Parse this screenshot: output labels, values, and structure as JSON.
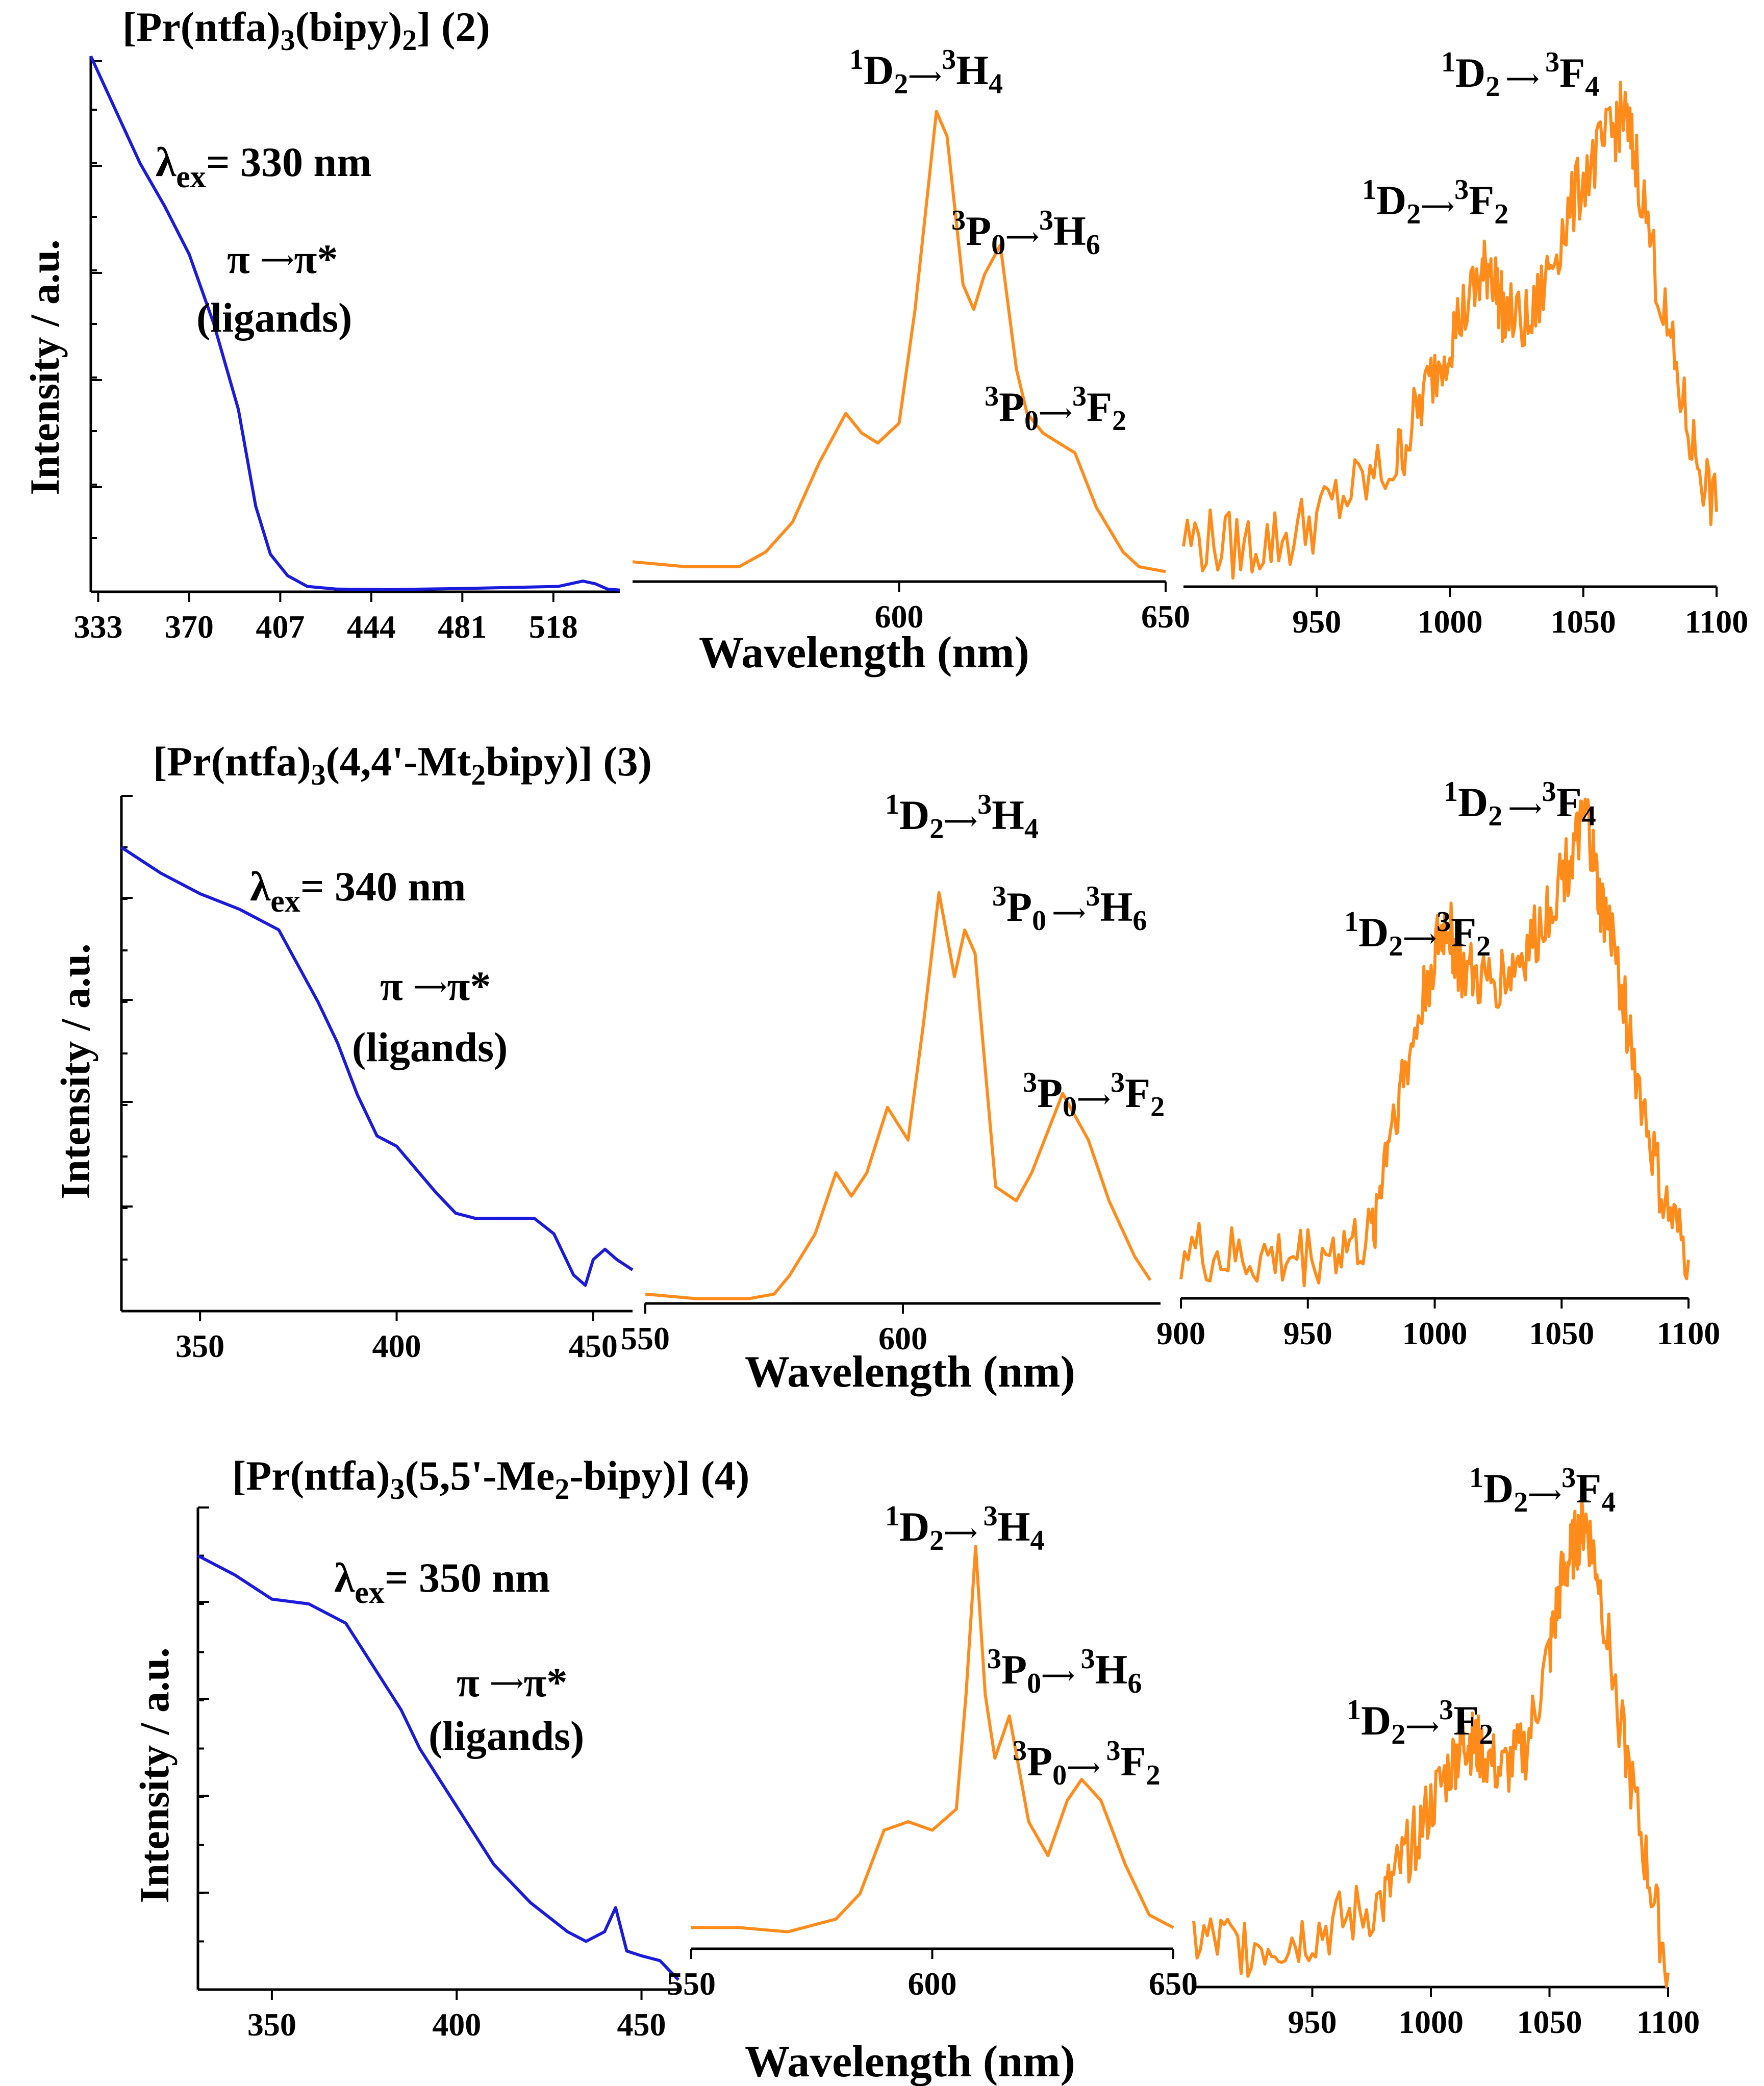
{
  "figure": {
    "xlabel": "Wavelength (nm)",
    "ylabel": "Intensity / a.u.",
    "panels": [
      {
        "compound": "[Pr(ntfa)3(bipy)2] (2)",
        "excitation_label": "λex= 330 nm",
        "pi_label": "π → π*",
        "ligands_label": "(ligands)"
      },
      {
        "compound": "[Pr(ntfa)3(4,4'-Mt2bipy)] (3)",
        "excitation_label": "λex= 340 nm",
        "pi_label": "π → π*",
        "ligands_label": "(ligands)"
      },
      {
        "compound": "[Pr(ntfa)3(5,5'-Me2-bipy)] (4)",
        "excitation_label": "λex= 350 nm",
        "pi_label": "π → π*",
        "ligands_label": "(ligands)"
      }
    ],
    "colors": {
      "excitation": "#1a1adc",
      "emission": "#ff8c1a"
    }
  },
  "chart_data": [
    {
      "type": "line",
      "title": "[Pr(ntfa)3(bipy)2] (2) — excitation",
      "xlabel": "",
      "ylabel": "Intensity / a.u.",
      "xlim": [
        330,
        545
      ],
      "ylim": [
        0,
        1
      ],
      "tick_labels": [
        "333",
        "370",
        "407",
        "444",
        "481",
        "518"
      ],
      "ticks": [
        333,
        370,
        407,
        444,
        481,
        518
      ],
      "series": [
        {
          "name": "excitation λex = 330 nm",
          "x": [
            330,
            340,
            350,
            360,
            370,
            380,
            390,
            397,
            403,
            410,
            418,
            430,
            450,
            480,
            500,
            520,
            530,
            535,
            540,
            545
          ],
          "y": [
            1.0,
            0.9,
            0.8,
            0.72,
            0.63,
            0.5,
            0.34,
            0.16,
            0.07,
            0.03,
            0.01,
            0.005,
            0.004,
            0.006,
            0.008,
            0.01,
            0.02,
            0.015,
            0.005,
            0.003
          ]
        }
      ]
    },
    {
      "type": "line",
      "title": "[Pr(ntfa)3(bipy)2] (2) — emission 550–650 nm",
      "xlabel": "Wavelength (nm)",
      "xlim": [
        550,
        650
      ],
      "ylim": [
        0,
        1
      ],
      "tick_labels": [
        "600",
        "650"
      ],
      "ticks": [
        600,
        650
      ],
      "annotations": [
        "1D2→3H4",
        "3P0→3H6",
        "3P0→3F2"
      ],
      "series": [
        {
          "name": "emission",
          "x": [
            550,
            560,
            570,
            575,
            580,
            585,
            590,
            593,
            596,
            600,
            603,
            607,
            609,
            612,
            614,
            616,
            619,
            622,
            624,
            627,
            630,
            633,
            637,
            642,
            645,
            650
          ],
          "y": [
            0.04,
            0.03,
            0.03,
            0.06,
            0.12,
            0.24,
            0.34,
            0.3,
            0.28,
            0.32,
            0.55,
            0.95,
            0.9,
            0.6,
            0.55,
            0.62,
            0.68,
            0.43,
            0.34,
            0.3,
            0.28,
            0.26,
            0.15,
            0.06,
            0.03,
            0.02
          ]
        }
      ]
    },
    {
      "type": "line",
      "title": "[Pr(ntfa)3(bipy)2] (2) — emission 900–1100 nm",
      "xlabel": "Wavelength (nm)",
      "xlim": [
        900,
        1100
      ],
      "ylim": [
        0,
        1
      ],
      "tick_labels": [
        "950",
        "1000",
        "1050",
        "1100"
      ],
      "ticks": [
        950,
        1000,
        1050,
        1100
      ],
      "annotations": [
        "1D2→3F2",
        "1D2→3F4"
      ],
      "series": [
        {
          "name": "emission",
          "x": [
            900,
            920,
            940,
            960,
            980,
            990,
            1000,
            1010,
            1015,
            1020,
            1030,
            1040,
            1050,
            1060,
            1065,
            1070,
            1080,
            1090,
            1100
          ],
          "y": [
            0.1,
            0.08,
            0.1,
            0.18,
            0.25,
            0.38,
            0.5,
            0.6,
            0.65,
            0.55,
            0.52,
            0.68,
            0.82,
            0.9,
            0.95,
            0.85,
            0.55,
            0.3,
            0.15
          ]
        }
      ]
    },
    {
      "type": "line",
      "title": "[Pr(ntfa)3(4,4'-Mt2bipy)] (3) — excitation",
      "xlabel": "",
      "ylabel": "Intensity / a.u.",
      "xlim": [
        330,
        460
      ],
      "ylim": [
        0,
        1
      ],
      "tick_labels": [
        "350",
        "400",
        "450"
      ],
      "ticks": [
        350,
        400,
        450
      ],
      "series": [
        {
          "name": "excitation λex = 340 nm",
          "x": [
            330,
            340,
            350,
            360,
            370,
            380,
            385,
            390,
            395,
            400,
            410,
            415,
            420,
            430,
            435,
            440,
            445,
            448,
            450,
            453,
            456,
            460
          ],
          "y": [
            0.9,
            0.85,
            0.81,
            0.78,
            0.74,
            0.6,
            0.52,
            0.42,
            0.34,
            0.32,
            0.23,
            0.19,
            0.18,
            0.18,
            0.18,
            0.15,
            0.07,
            0.05,
            0.1,
            0.12,
            0.1,
            0.08
          ]
        }
      ]
    },
    {
      "type": "line",
      "title": "[Pr(ntfa)3(4,4'-Mt2bipy)] (3) — emission 550–650 nm",
      "xlabel": "Wavelength (nm)",
      "xlim": [
        550,
        650
      ],
      "ylim": [
        0,
        1
      ],
      "tick_labels": [
        "550",
        "600"
      ],
      "ticks": [
        550,
        600
      ],
      "annotations": [
        "1D2→3H4",
        "3P0→3H6",
        "3P0→3F2"
      ],
      "series": [
        {
          "name": "emission",
          "x": [
            550,
            560,
            570,
            575,
            578,
            583,
            587,
            590,
            593,
            597,
            601,
            604,
            607,
            610,
            612,
            614,
            618,
            622,
            625,
            631,
            636,
            640,
            645,
            648
          ],
          "y": [
            0.02,
            0.01,
            0.01,
            0.02,
            0.06,
            0.15,
            0.28,
            0.23,
            0.28,
            0.42,
            0.35,
            0.6,
            0.88,
            0.7,
            0.8,
            0.75,
            0.25,
            0.22,
            0.28,
            0.45,
            0.35,
            0.22,
            0.1,
            0.05
          ]
        }
      ]
    },
    {
      "type": "line",
      "title": "[Pr(ntfa)3(4,4'-Mt2bipy)] (3) — emission 900–1100 nm",
      "xlabel": "Wavelength (nm)",
      "xlim": [
        900,
        1100
      ],
      "ylim": [
        0,
        1
      ],
      "tick_labels": [
        "900",
        "950",
        "1000",
        "1050",
        "1100"
      ],
      "ticks": [
        900,
        950,
        1000,
        1050,
        1100
      ],
      "annotations": [
        "1D2→3F2",
        "1D2→3F4"
      ],
      "series": [
        {
          "name": "emission",
          "x": [
            900,
            920,
            940,
            960,
            975,
            982,
            990,
            1000,
            1005,
            1010,
            1020,
            1030,
            1040,
            1050,
            1055,
            1060,
            1065,
            1070,
            1080,
            1090,
            1100
          ],
          "y": [
            0.1,
            0.08,
            0.08,
            0.1,
            0.12,
            0.35,
            0.5,
            0.72,
            0.78,
            0.68,
            0.65,
            0.68,
            0.75,
            0.88,
            0.93,
            1.0,
            0.82,
            0.75,
            0.45,
            0.2,
            0.08
          ]
        }
      ]
    },
    {
      "type": "line",
      "title": "[Pr(ntfa)3(5,5'-Me2-bipy)] (4) — excitation",
      "xlabel": "",
      "ylabel": "Intensity / a.u.",
      "xlim": [
        330,
        460
      ],
      "ylim": [
        0,
        1
      ],
      "tick_labels": [
        "350",
        "400",
        "450"
      ],
      "ticks": [
        350,
        400,
        450
      ],
      "series": [
        {
          "name": "excitation λex = 350 nm",
          "x": [
            330,
            340,
            350,
            360,
            370,
            380,
            385,
            390,
            395,
            400,
            410,
            415,
            420,
            430,
            435,
            440,
            443,
            446,
            450,
            455,
            460
          ],
          "y": [
            0.9,
            0.86,
            0.81,
            0.8,
            0.76,
            0.64,
            0.58,
            0.5,
            0.44,
            0.38,
            0.26,
            0.22,
            0.18,
            0.12,
            0.1,
            0.12,
            0.17,
            0.08,
            0.07,
            0.06,
            0.02
          ]
        }
      ]
    },
    {
      "type": "line",
      "title": "[Pr(ntfa)3(5,5'-Me2-bipy)] (4) — emission 550–650 nm",
      "xlabel": "Wavelength (nm)",
      "xlim": [
        550,
        650
      ],
      "ylim": [
        0,
        1
      ],
      "tick_labels": [
        "550",
        "600",
        "650"
      ],
      "ticks": [
        550,
        600,
        650
      ],
      "annotations": [
        "1D2→3H4",
        "3P0→3H6",
        "3P0→3F2"
      ],
      "series": [
        {
          "name": "emission",
          "x": [
            550,
            560,
            570,
            580,
            585,
            590,
            595,
            600,
            605,
            607,
            609,
            611,
            613,
            616,
            620,
            624,
            628,
            631,
            635,
            640,
            645,
            650
          ],
          "y": [
            0.05,
            0.05,
            0.04,
            0.07,
            0.13,
            0.28,
            0.3,
            0.28,
            0.33,
            0.6,
            0.95,
            0.6,
            0.45,
            0.55,
            0.3,
            0.22,
            0.35,
            0.4,
            0.35,
            0.2,
            0.08,
            0.05
          ]
        }
      ]
    },
    {
      "type": "line",
      "title": "[Pr(ntfa)3(5,5'-Me2-bipy)] (4) — emission 900–1100 nm",
      "xlabel": "Wavelength (nm)",
      "xlim": [
        900,
        1100
      ],
      "ylim": [
        0,
        1
      ],
      "tick_labels": [
        "950",
        "1000",
        "1050",
        "1100"
      ],
      "ticks": [
        950,
        1000,
        1050,
        1100
      ],
      "annotations": [
        "1D2→3F2",
        "1D2→3F4"
      ],
      "series": [
        {
          "name": "emission",
          "x": [
            900,
            920,
            940,
            960,
            980,
            990,
            1000,
            1010,
            1015,
            1020,
            1030,
            1040,
            1050,
            1055,
            1060,
            1065,
            1070,
            1080,
            1090,
            1100
          ],
          "y": [
            0.1,
            0.09,
            0.1,
            0.13,
            0.18,
            0.28,
            0.38,
            0.48,
            0.52,
            0.5,
            0.45,
            0.5,
            0.7,
            0.85,
            0.92,
            0.98,
            0.88,
            0.55,
            0.28,
            0.03
          ]
        }
      ]
    }
  ]
}
